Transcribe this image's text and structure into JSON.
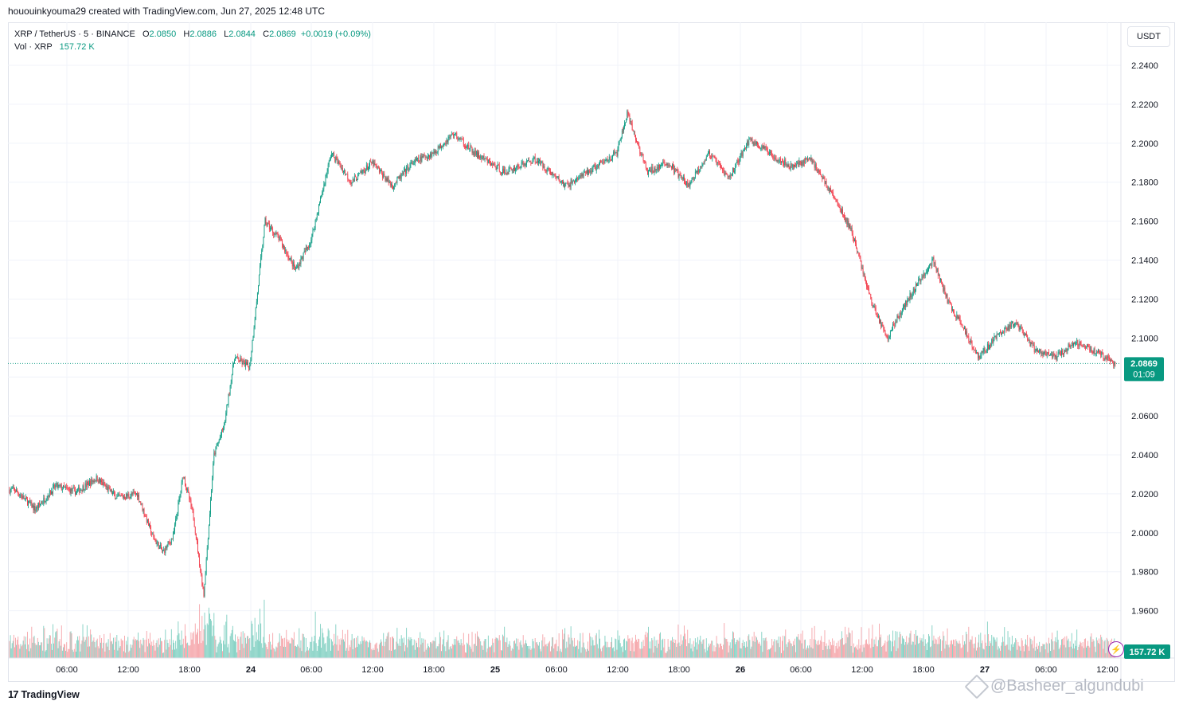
{
  "header": {
    "caption": "hououinkyouma29 created with TradingView.com, Jun 27, 2025 12:48 UTC"
  },
  "legend": {
    "symbol": "XRP / TetherUS · 5 · BINANCE",
    "open_label": "O",
    "open": "2.0850",
    "high_label": "H",
    "high": "2.0886",
    "low_label": "L",
    "low": "2.0844",
    "close_label": "C",
    "close": "2.0869",
    "change": "+0.0019 (+0.09%)",
    "vol_label": "Vol · XRP",
    "vol_value": "157.72 K"
  },
  "currency": "USDT",
  "brand": {
    "logo": "17",
    "name": "TradingView"
  },
  "watermark": "@Basheer_algundubi",
  "colors": {
    "up": "#089981",
    "down": "#f23645",
    "vol_up": "#7fcfc1",
    "vol_down": "#f5a3a8",
    "grid": "#f0f3fa",
    "text": "#131722"
  },
  "chart_data": {
    "type": "candlestick",
    "interval": "5",
    "exchange": "BINANCE",
    "ylim": [
      1.95,
      2.25
    ],
    "y_ticks": [
      "2.2400",
      "2.2200",
      "2.2000",
      "2.1800",
      "2.1600",
      "2.1400",
      "2.1200",
      "2.1000",
      "2.0800",
      "2.0600",
      "2.0400",
      "2.0200",
      "2.0000",
      "1.9800",
      "1.9600"
    ],
    "x_ticks": [
      "06:00",
      "12:00",
      "18:00",
      "24",
      "06:00",
      "12:00",
      "18:00",
      "25",
      "06:00",
      "12:00",
      "18:00",
      "26",
      "06:00",
      "12:00",
      "18:00",
      "27",
      "06:00",
      "12:00"
    ],
    "bold_x_ticks": [
      "24",
      "25",
      "26",
      "27"
    ],
    "last_price": "2.0869",
    "countdown": "01:09",
    "last_volume": "157.72 K",
    "price_path": {
      "x": [
        "Jun 23 01:00",
        "Jun 23 03:00",
        "Jun 23 05:00",
        "Jun 23 07:00",
        "Jun 23 09:00",
        "Jun 23 11:00",
        "Jun 23 13:00",
        "Jun 23 14:30",
        "Jun 23 15:30",
        "Jun 23 16:30",
        "Jun 23 17:30",
        "Jun 23 18:30",
        "Jun 23 19:30",
        "Jun 23 20:30",
        "Jun 23 21:30",
        "Jun 23 22:30",
        "Jun 24 00:00",
        "Jun 24 01:30",
        "Jun 24 03:00",
        "Jun 24 04:30",
        "Jun 24 06:00",
        "Jun 24 08:00",
        "Jun 24 10:00",
        "Jun 24 12:00",
        "Jun 24 14:00",
        "Jun 24 16:00",
        "Jun 24 18:00",
        "Jun 24 20:00",
        "Jun 24 22:00",
        "Jun 25 01:00",
        "Jun 25 04:00",
        "Jun 25 07:00",
        "Jun 25 10:00",
        "Jun 25 12:00",
        "Jun 25 13:00",
        "Jun 25 15:00",
        "Jun 25 17:00",
        "Jun 25 19:00",
        "Jun 25 21:00",
        "Jun 25 23:00",
        "Jun 26 01:00",
        "Jun 26 03:00",
        "Jun 26 05:00",
        "Jun 26 07:00",
        "Jun 26 09:00",
        "Jun 26 11:00",
        "Jun 26 13:00",
        "Jun 26 14:30",
        "Jun 26 16:00",
        "Jun 26 17:30",
        "Jun 26 19:00",
        "Jun 26 20:30",
        "Jun 26 22:00",
        "Jun 26 23:30",
        "Jun 27 01:00",
        "Jun 27 03:00",
        "Jun 27 05:00",
        "Jun 27 07:00",
        "Jun 27 09:00",
        "Jun 27 11:00",
        "Jun 27 12:45"
      ],
      "y": [
        2.022,
        2.012,
        2.024,
        2.021,
        2.028,
        2.018,
        2.02,
        1.998,
        1.99,
        1.998,
        2.03,
        2.008,
        1.968,
        2.04,
        2.055,
        2.09,
        2.085,
        2.16,
        2.15,
        2.135,
        2.15,
        2.195,
        2.18,
        2.19,
        2.178,
        2.19,
        2.195,
        2.205,
        2.195,
        2.185,
        2.192,
        2.178,
        2.188,
        2.195,
        2.215,
        2.185,
        2.19,
        2.178,
        2.195,
        2.182,
        2.202,
        2.195,
        2.188,
        2.192,
        2.175,
        2.155,
        2.118,
        2.1,
        2.115,
        2.128,
        2.14,
        2.118,
        2.105,
        2.09,
        2.1,
        2.108,
        2.094,
        2.09,
        2.098,
        2.093,
        2.0869
      ]
    }
  }
}
